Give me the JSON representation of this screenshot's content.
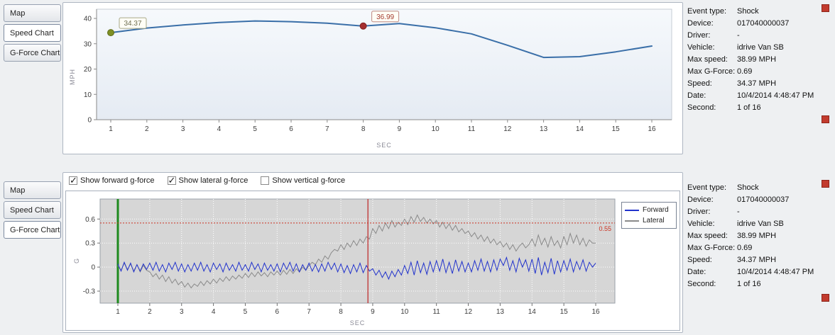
{
  "colors": {
    "speed_line": "#3A6FA8",
    "forward_line": "#2233CC",
    "lateral_line": "#8A8A8A",
    "event_cursor_red": "#C03030",
    "start_cursor_green": "#1E8A1E",
    "threshold_red": "#CC3322",
    "alert_square_red": "#C23B2E"
  },
  "top_panel": {
    "tabs": [
      {
        "label": "Map",
        "selected": false
      },
      {
        "label": "Speed Chart",
        "selected": true
      },
      {
        "label": "G-Force Chart",
        "selected": false
      }
    ]
  },
  "bottom_panel": {
    "tabs": [
      {
        "label": "Map",
        "selected": false
      },
      {
        "label": "Speed Chart",
        "selected": false
      },
      {
        "label": "G-Force Chart",
        "selected": true
      }
    ],
    "checkboxes": [
      {
        "label": "Show forward g-force",
        "checked": true
      },
      {
        "label": "Show lateral g-force",
        "checked": true
      },
      {
        "label": "Show vertical g-force",
        "checked": false
      }
    ]
  },
  "event_details": {
    "rows": [
      {
        "label": "Event type:",
        "value": "Shock"
      },
      {
        "label": "Device:",
        "value": "017040000037"
      },
      {
        "label": "Driver:",
        "value": "-"
      },
      {
        "label": "Vehicle:",
        "value": "idrive Van SB"
      },
      {
        "label": "Max speed:",
        "value": "38.99 MPH"
      },
      {
        "label": "Max G-Force:",
        "value": "0.69"
      },
      {
        "label": "Speed:",
        "value": "34.37 MPH"
      },
      {
        "label": "Date:",
        "value": "10/4/2014 4:48:47 PM"
      },
      {
        "label": "Second:",
        "value": "1 of 16"
      }
    ]
  },
  "chart_data": [
    {
      "type": "line",
      "title": "",
      "xlabel": "SEC",
      "ylabel": "MPH",
      "ylim": [
        0,
        40
      ],
      "yticks": [
        0,
        10,
        20,
        30,
        40
      ],
      "xticks": [
        1,
        2,
        3,
        4,
        5,
        6,
        7,
        8,
        9,
        10,
        11,
        12,
        13,
        14,
        15,
        16
      ],
      "x": [
        1,
        2,
        3,
        4,
        5,
        6,
        7,
        8,
        9,
        10,
        11,
        12,
        13,
        14,
        15,
        16
      ],
      "values": [
        34.37,
        36.2,
        37.4,
        38.4,
        38.99,
        38.7,
        38.1,
        36.99,
        38.0,
        36.3,
        33.9,
        29.4,
        24.6,
        24.9,
        26.8,
        29.1
      ],
      "line_color": "#3A6FA8",
      "markers": [
        {
          "x": 1,
          "y": 34.37,
          "label": "34.37",
          "dot_color": "#7E9024",
          "dot_edge": "#5E6C1A",
          "box_border": "#A8A888",
          "text_color": "#6E6E50"
        },
        {
          "x": 8,
          "y": 36.99,
          "label": "36.99",
          "dot_color": "#A52F2F",
          "dot_edge": "#7E2020",
          "box_border": "#C08A80",
          "text_color": "#A33B2E"
        }
      ]
    },
    {
      "type": "line",
      "title": "",
      "xlabel": "SEC",
      "ylabel": "G",
      "ylim": [
        -0.45,
        0.85
      ],
      "yticks": [
        -0.3,
        0,
        0.3,
        0.6
      ],
      "xticks": [
        1,
        2,
        3,
        4,
        5,
        6,
        7,
        8,
        9,
        10,
        11,
        12,
        13,
        14,
        15,
        16
      ],
      "x_start": 1,
      "x_end": 16,
      "start_marker_x": 1,
      "start_marker_color": "#1E8A1E",
      "event_marker_x": 8.85,
      "event_marker_color": "#C03030",
      "threshold": {
        "value": 0.55,
        "label": "0.55",
        "color": "#CC3322"
      },
      "series": [
        {
          "name": "Forward",
          "color": "#2233CC",
          "values": [
            0.04,
            -0.05,
            0.06,
            -0.04,
            0.05,
            -0.06,
            0.03,
            -0.05,
            0.04,
            -0.03,
            0.05,
            -0.04,
            0.06,
            -0.05,
            0.03,
            -0.06,
            0.05,
            -0.03,
            0.06,
            -0.05,
            0.04,
            -0.06,
            0.03,
            -0.05,
            0.05,
            -0.04,
            0.06,
            -0.05,
            0.03,
            -0.06,
            0.05,
            -0.03,
            0.04,
            -0.06,
            0.05,
            -0.04,
            0.03,
            -0.05,
            0.06,
            -0.04,
            0.03,
            -0.05,
            0.06,
            -0.03,
            0.04,
            -0.06,
            0.05,
            -0.04,
            0.03,
            -0.05,
            0.04,
            -0.06,
            0.05,
            -0.03,
            0.06,
            -0.05,
            0.04,
            -0.06,
            0.03,
            -0.04,
            0.05,
            -0.05,
            0.03,
            -0.06,
            0.04,
            -0.05,
            0.06,
            -0.03,
            0.05,
            -0.06,
            0.04,
            -0.07,
            0.02,
            -0.08,
            0.03,
            -0.06,
            0.05,
            -0.07,
            0.02,
            -0.05,
            -0.02,
            -0.1,
            -0.04,
            -0.13,
            -0.06,
            -0.15,
            -0.05,
            -0.12,
            -0.03,
            -0.1,
            0.02,
            -0.08,
            0.06,
            -0.1,
            0.08,
            -0.07,
            0.05,
            -0.09,
            0.07,
            -0.06,
            0.08,
            -0.05,
            0.1,
            -0.07,
            0.06,
            -0.08,
            0.09,
            -0.05,
            0.07,
            -0.06,
            0.05,
            -0.06,
            0.08,
            -0.04,
            0.1,
            -0.05,
            0.07,
            -0.06,
            0.09,
            -0.04,
            0.1,
            0.02,
            0.12,
            -0.04,
            0.08,
            -0.06,
            0.11,
            0.0,
            0.09,
            -0.05,
            0.1,
            -0.08,
            0.12,
            -0.1,
            0.06,
            -0.07,
            0.11,
            -0.09,
            0.08,
            -0.06,
            0.08,
            -0.04,
            0.1,
            -0.06,
            0.07,
            -0.03,
            0.09,
            -0.05,
            0.06,
            0.0,
            0.05
          ]
        },
        {
          "name": "Lateral",
          "color": "#8A8A8A",
          "values": [
            0.02,
            -0.04,
            0.05,
            -0.03,
            0.04,
            -0.05,
            0.03,
            -0.06,
            0.02,
            -0.04,
            -0.06,
            -0.12,
            -0.08,
            -0.15,
            -0.1,
            -0.18,
            -0.12,
            -0.2,
            -0.15,
            -0.22,
            -0.18,
            -0.25,
            -0.2,
            -0.26,
            -0.21,
            -0.24,
            -0.18,
            -0.23,
            -0.17,
            -0.21,
            -0.15,
            -0.2,
            -0.14,
            -0.18,
            -0.12,
            -0.17,
            -0.11,
            -0.15,
            -0.1,
            -0.14,
            -0.08,
            -0.13,
            -0.07,
            -0.12,
            -0.06,
            -0.11,
            -0.07,
            -0.12,
            -0.06,
            -0.1,
            -0.05,
            -0.1,
            -0.04,
            -0.09,
            -0.03,
            -0.08,
            -0.02,
            -0.06,
            0.0,
            -0.04,
            0.02,
            0.06,
            0.03,
            0.1,
            0.06,
            0.14,
            0.1,
            0.18,
            0.22,
            0.2,
            0.28,
            0.22,
            0.3,
            0.25,
            0.33,
            0.27,
            0.35,
            0.3,
            0.38,
            0.35,
            0.48,
            0.42,
            0.52,
            0.45,
            0.55,
            0.48,
            0.58,
            0.5,
            0.56,
            0.52,
            0.6,
            0.53,
            0.63,
            0.56,
            0.65,
            0.57,
            0.62,
            0.55,
            0.6,
            0.54,
            0.58,
            0.5,
            0.56,
            0.48,
            0.54,
            0.46,
            0.52,
            0.44,
            0.48,
            0.42,
            0.45,
            0.38,
            0.43,
            0.35,
            0.4,
            0.32,
            0.38,
            0.3,
            0.35,
            0.28,
            0.32,
            0.25,
            0.3,
            0.22,
            0.28,
            0.2,
            0.26,
            0.3,
            0.24,
            0.28,
            0.35,
            0.26,
            0.4,
            0.28,
            0.36,
            0.25,
            0.38,
            0.27,
            0.33,
            0.24,
            0.38,
            0.28,
            0.42,
            0.3,
            0.4,
            0.28,
            0.36,
            0.26,
            0.34,
            0.3,
            0.3
          ]
        }
      ]
    }
  ]
}
